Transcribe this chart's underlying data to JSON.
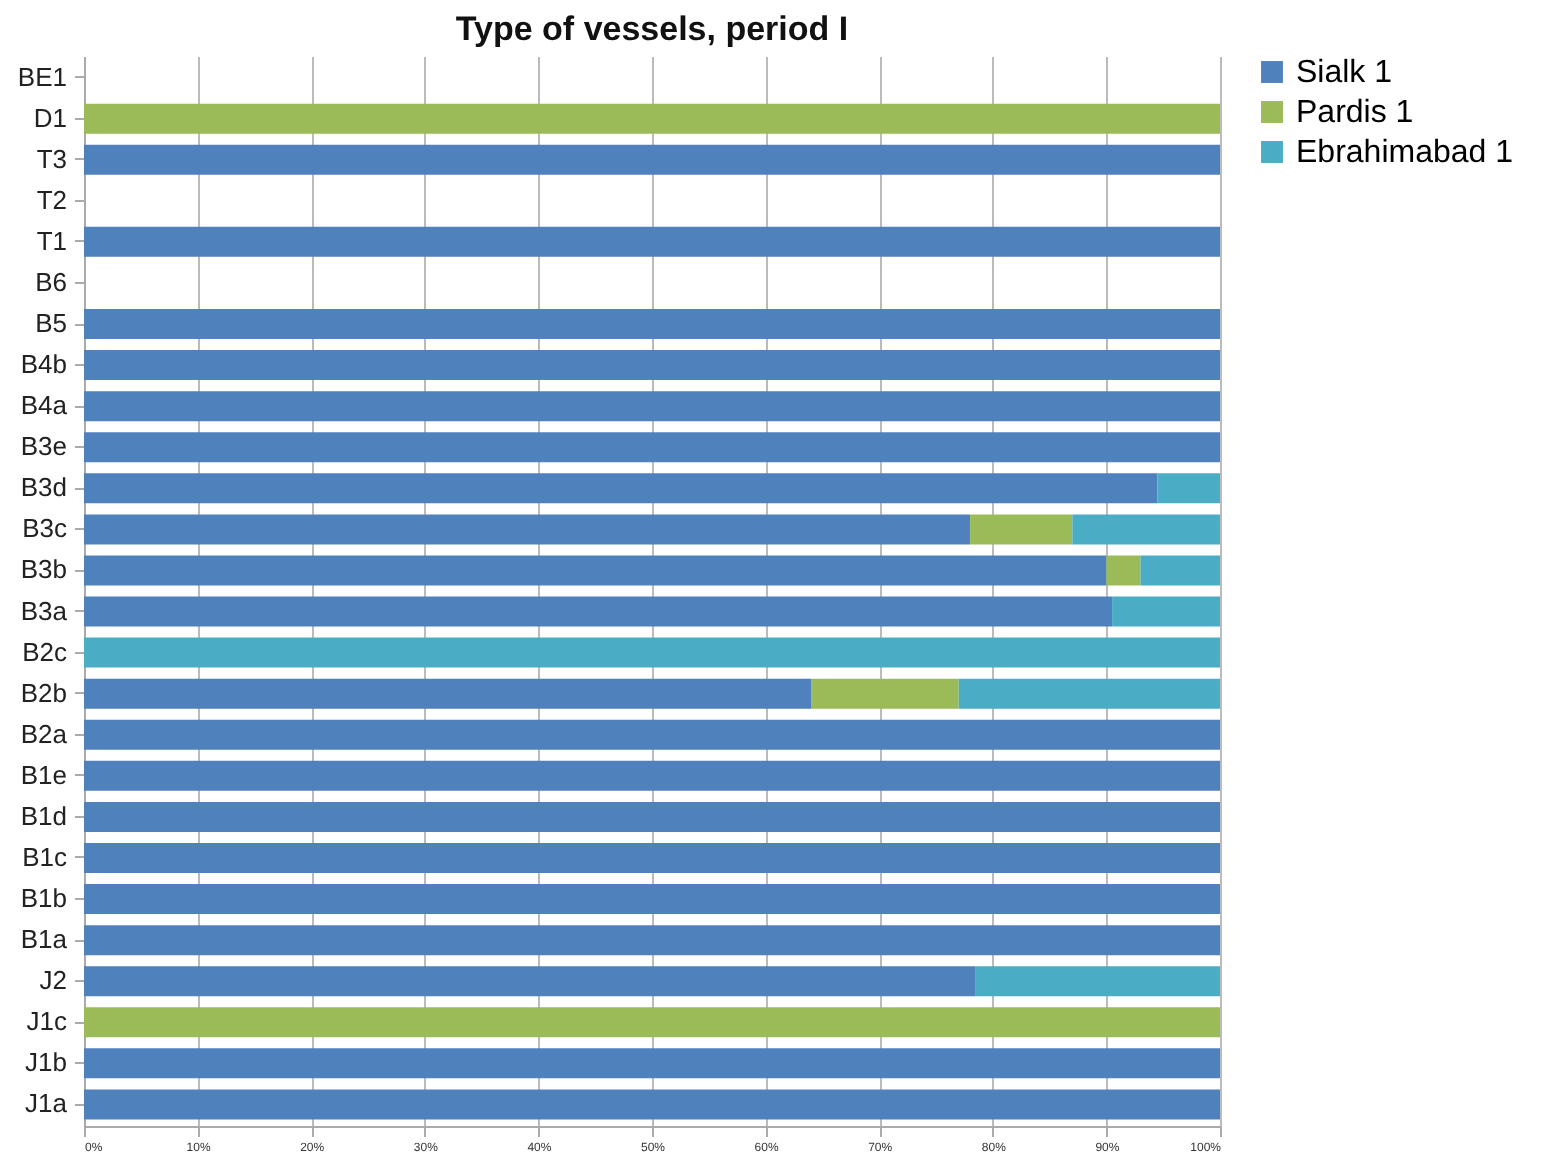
{
  "chart_data": {
    "type": "bar",
    "orientation": "horizontal",
    "stacked": true,
    "title": "Type of vessels, period I",
    "categories": [
      "BE1",
      "D1",
      "T3",
      "T2",
      "T1",
      "B6",
      "B5",
      "B4b",
      "B4a",
      "B3e",
      "B3d",
      "B3c",
      "B3b",
      "B3a",
      "B2c",
      "B2b",
      "B2a",
      "B1e",
      "B1d",
      "B1c",
      "B1b",
      "B1a",
      "J2",
      "J1c",
      "J1b",
      "J1a"
    ],
    "series": [
      {
        "name": "Sialk 1",
        "color": "#4f81bd",
        "values": [
          null,
          null,
          100,
          null,
          100,
          null,
          100,
          100,
          100,
          100,
          94.5,
          78,
          90,
          90.5,
          null,
          64,
          100,
          100,
          100,
          100,
          100,
          100,
          78.5,
          null,
          100,
          100
        ]
      },
      {
        "name": "Pardis 1",
        "color": "#9bbb59",
        "values": [
          null,
          100,
          null,
          null,
          null,
          null,
          null,
          null,
          null,
          null,
          null,
          9,
          3,
          null,
          null,
          13,
          null,
          null,
          null,
          null,
          null,
          null,
          null,
          100,
          null,
          null
        ]
      },
      {
        "name": "Ebrahimabad 1",
        "color": "#4bacc6",
        "values": [
          null,
          null,
          null,
          null,
          null,
          null,
          null,
          null,
          null,
          null,
          5.5,
          13,
          7,
          9.5,
          100,
          23,
          null,
          null,
          null,
          null,
          null,
          null,
          21.5,
          null,
          null,
          null
        ]
      }
    ],
    "xlim": [
      0,
      100
    ],
    "xticks": [
      {
        "value": 0,
        "label": "0%"
      },
      {
        "value": 10,
        "label": "10%"
      },
      {
        "value": 20,
        "label": "20%"
      },
      {
        "value": 30,
        "label": "30%"
      },
      {
        "value": 40,
        "label": "40%"
      },
      {
        "value": 50,
        "label": "50%"
      },
      {
        "value": 60,
        "label": "60%"
      },
      {
        "value": 70,
        "label": "70%"
      },
      {
        "value": 80,
        "label": "80%"
      },
      {
        "value": 90,
        "label": "90%"
      },
      {
        "value": 100,
        "label": "100%"
      }
    ],
    "grid": "x",
    "legend": "right"
  }
}
